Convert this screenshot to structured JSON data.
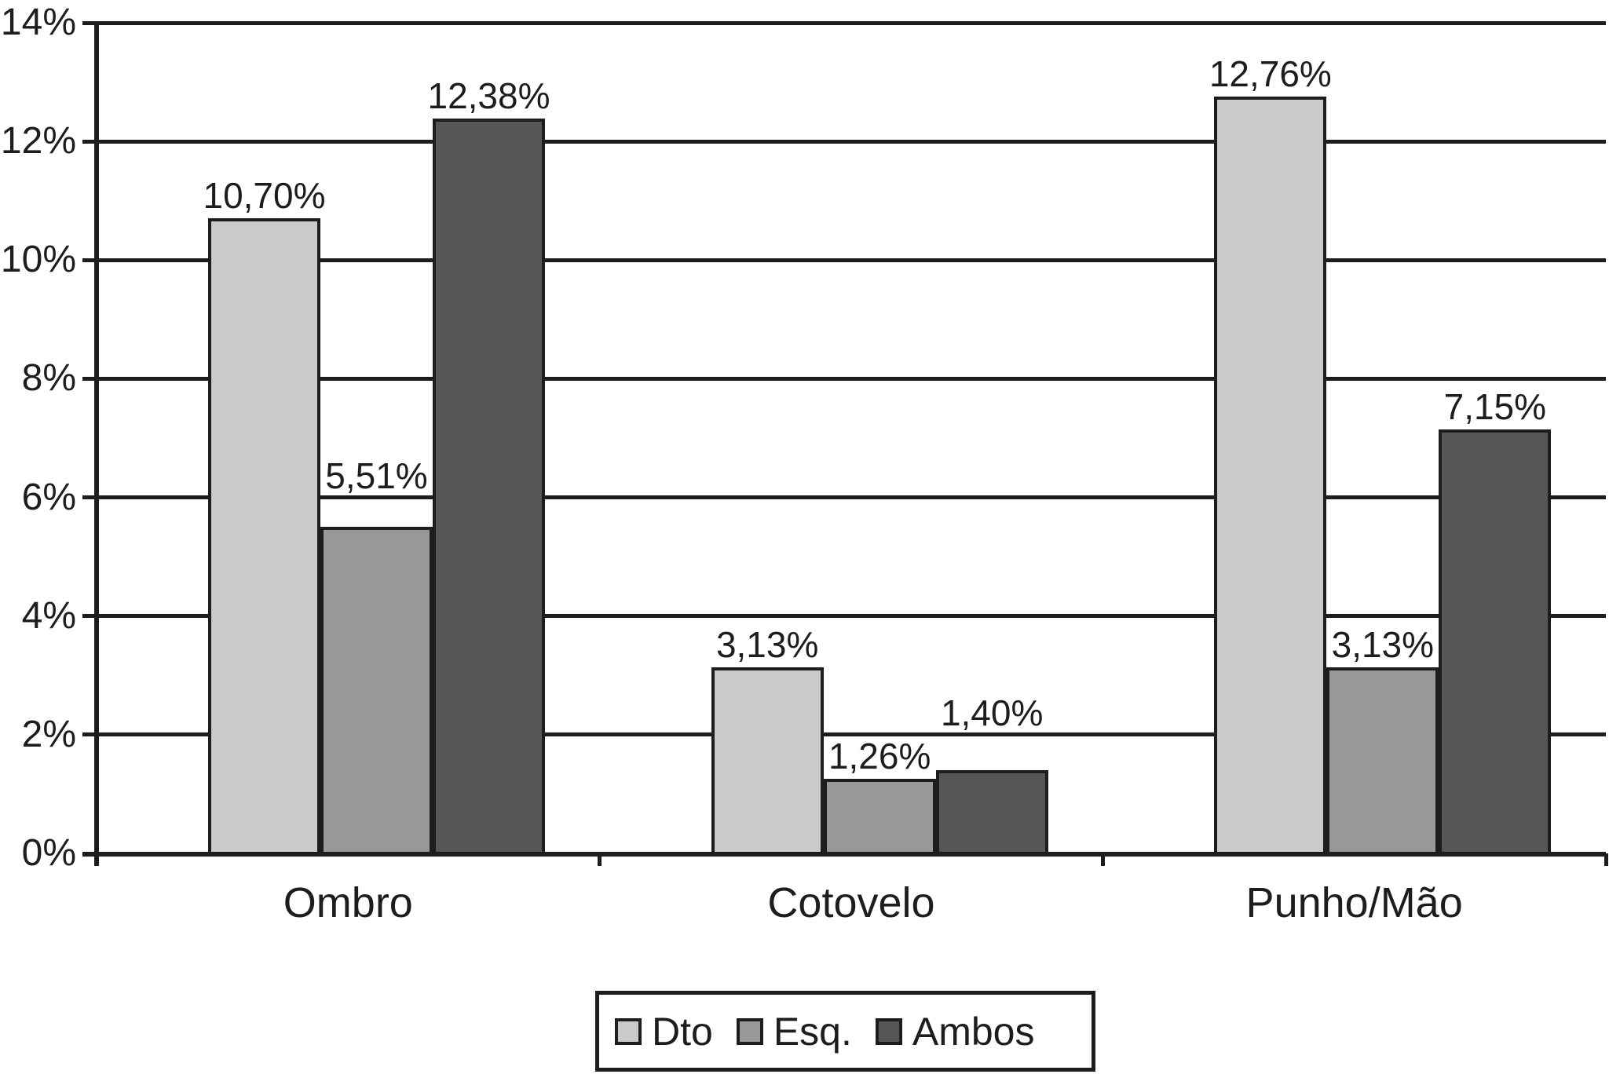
{
  "chart_data": {
    "type": "bar",
    "title": "",
    "xlabel": "",
    "ylabel": "",
    "categories": [
      "Ombro",
      "Cotovelo",
      "Punho/Mão"
    ],
    "series": [
      {
        "name": "Dto",
        "color": "#cacaca",
        "values": [
          10.7,
          3.13,
          12.76
        ],
        "labels": [
          "10,70%",
          "3,13%",
          "12,76%"
        ]
      },
      {
        "name": "Esq.",
        "color": "#989898",
        "values": [
          5.51,
          1.26,
          3.13
        ],
        "labels": [
          "5,51%",
          "1,26%",
          "3,13%"
        ]
      },
      {
        "name": "Ambos",
        "color": "#565656",
        "values": [
          12.38,
          1.4,
          7.15
        ],
        "labels": [
          "12,38%",
          "1,40%",
          "7,15%"
        ]
      }
    ],
    "y_axis": {
      "min": 0,
      "max": 14,
      "step": 2,
      "tick_labels": [
        "0%",
        "2%",
        "4%",
        "6%",
        "8%",
        "10%",
        "12%",
        "14%"
      ]
    },
    "grid": true,
    "legend": {
      "position": "bottom",
      "entries": [
        "Dto",
        "Esq.",
        "Ambos"
      ]
    },
    "line_color": "#1d1d1b",
    "background_color": "#ffffff"
  }
}
